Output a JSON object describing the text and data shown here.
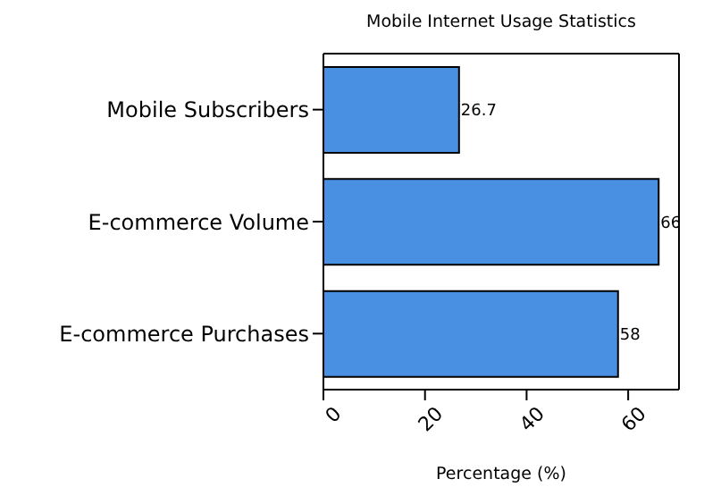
{
  "chart_data": {
    "type": "bar",
    "orientation": "horizontal",
    "title": "Mobile Internet Usage Statistics",
    "xlabel": "Percentage (%)",
    "categories": [
      "Mobile Subscribers",
      "E-commerce Volume",
      "E-commerce Purchases"
    ],
    "values": [
      26.7,
      66,
      58
    ],
    "color": "#4a90e2",
    "xlim": [
      0,
      70
    ],
    "xticks": [
      0,
      20,
      40,
      60
    ],
    "grid": false,
    "data_labels": true
  }
}
